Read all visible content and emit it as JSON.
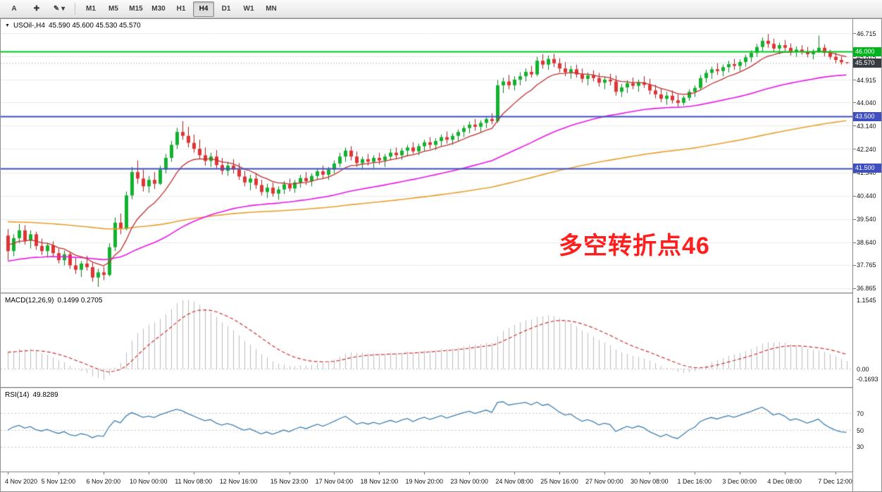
{
  "toolbar": {
    "left_buttons": [
      {
        "name": "text-tool-button",
        "label": "A"
      },
      {
        "name": "crosshair-tool-button",
        "label": "✚"
      },
      {
        "name": "drawing-tools-button",
        "label": "✎",
        "caret": "▾"
      }
    ],
    "timeframes": [
      "M1",
      "M5",
      "M15",
      "M30",
      "H1",
      "H4",
      "D1",
      "W1",
      "MN"
    ],
    "active_timeframe": "H4"
  },
  "chart": {
    "header": {
      "symbol": "USOil-,H4",
      "ohlc": "45.590 45.600 45.530 45.570"
    },
    "annotation": {
      "text": "多空转折点46",
      "color": "#ff1e1e"
    },
    "bid_price": 45.57,
    "price_axis": {
      "ticks": [
        "46.715",
        "45.815",
        "44.915",
        "44.040",
        "43.140",
        "42.240",
        "41.340",
        "40.440",
        "39.540",
        "38.640",
        "37.765",
        "36.865"
      ],
      "badges": [
        {
          "text": "46.000",
          "price": 46.0,
          "bg": "#00b41e"
        },
        {
          "text": "45.570",
          "price": 45.57,
          "bg": "#383d44"
        },
        {
          "text": "43.500",
          "price": 43.5,
          "bg": "#3f4ec0"
        },
        {
          "text": "41.500",
          "price": 41.5,
          "bg": "#3f4ec0"
        }
      ]
    },
    "hlines": [
      {
        "price": 46.0,
        "color": "#00c81e",
        "width": 2
      },
      {
        "price": 43.5,
        "color": "#3f4ec0",
        "width": 2
      },
      {
        "price": 41.5,
        "color": "#3f4ec0",
        "width": 2
      }
    ],
    "macd": {
      "label": "MACD(12,26,9)",
      "values": "0.1499 0.2705",
      "axis": [
        {
          "text": "1.1545",
          "v": 1.1545
        },
        {
          "text": "0.00",
          "v": 0
        },
        {
          "text": "-0.1693",
          "v": -0.1693
        }
      ]
    },
    "rsi": {
      "label": "RSI(14)",
      "values": "49.8289",
      "levels": [
        70,
        50,
        30
      ],
      "axis": [
        {
          "text": "70",
          "v": 70
        },
        {
          "text": "50",
          "v": 50
        },
        {
          "text": "30",
          "v": 30
        }
      ]
    },
    "time_axis": [
      {
        "text": "4 Nov 2020",
        "i": 0
      },
      {
        "text": "5 Nov 12:00",
        "i": 9
      },
      {
        "text": "6 Nov 20:00",
        "i": 17
      },
      {
        "text": "10 Nov 00:00",
        "i": 25
      },
      {
        "text": "11 Nov 08:00",
        "i": 33
      },
      {
        "text": "12 Nov 16:00",
        "i": 41
      },
      {
        "text": "15 Nov 23:00",
        "i": 50
      },
      {
        "text": "17 Nov 04:00",
        "i": 58
      },
      {
        "text": "18 Nov 12:00",
        "i": 66
      },
      {
        "text": "19 Nov 20:00",
        "i": 74
      },
      {
        "text": "23 Nov 00:00",
        "i": 82
      },
      {
        "text": "24 Nov 08:00",
        "i": 90
      },
      {
        "text": "25 Nov 16:00",
        "i": 98
      },
      {
        "text": "27 Nov 00:00",
        "i": 106
      },
      {
        "text": "30 Nov 08:00",
        "i": 114
      },
      {
        "text": "1 Dec 16:00",
        "i": 122
      },
      {
        "text": "3 Dec 00:00",
        "i": 130
      },
      {
        "text": "4 Dec 08:00",
        "i": 138
      },
      {
        "text": "7 Dec 12:00",
        "i": 147
      }
    ],
    "colors": {
      "candle_up": "#12b22e",
      "candle_up_dark": "#0b7e20",
      "candle_down": "#e03535",
      "candle_down_dark": "#a81d1d",
      "grid": "#ebebeb",
      "bid_line": "#c4c8d0",
      "macd_hist": "#bdbdbd",
      "macd_signal": "#cc3333",
      "rsi_line": "#4080b0"
    }
  },
  "chart_data": {
    "type": "candlestick",
    "symbol": "USOil-",
    "timeframe": "H4",
    "title": "USOil-,H4",
    "price_range": [
      36.7,
      47.26
    ],
    "overlays": [
      {
        "name": "ma-fast",
        "type": "ema",
        "color": "#c03030",
        "alpha": 0.18,
        "seed": 38.6
      },
      {
        "name": "ma-mid",
        "type": "ema",
        "color": "#e818e8",
        "alpha": 0.035,
        "seed": 37.9
      },
      {
        "name": "ma-slow",
        "type": "ema",
        "color": "#e8a030",
        "alpha": 0.013,
        "seed": 39.45
      }
    ],
    "indicators": {
      "macd": {
        "fast": 12,
        "slow": 26,
        "signal": 9,
        "display_macd": 0.1499,
        "display_signal": 0.2705,
        "scale_max": 1.1545,
        "axis_min": -0.1693
      },
      "rsi": {
        "period": 14,
        "display": 49.8289
      }
    },
    "candles": [
      [
        38.9,
        39.15,
        37.95,
        38.3
      ],
      [
        38.3,
        38.95,
        38.1,
        38.8
      ],
      [
        38.8,
        39.35,
        38.6,
        39.1
      ],
      [
        39.1,
        39.3,
        38.55,
        38.7
      ],
      [
        38.7,
        39.1,
        38.4,
        38.95
      ],
      [
        38.95,
        39.05,
        38.35,
        38.5
      ],
      [
        38.5,
        38.78,
        38.15,
        38.3
      ],
      [
        38.3,
        38.62,
        38.05,
        38.52
      ],
      [
        38.52,
        38.68,
        38.08,
        38.22
      ],
      [
        38.22,
        38.4,
        37.82,
        37.95
      ],
      [
        37.95,
        38.32,
        37.75,
        38.18
      ],
      [
        38.18,
        38.28,
        37.62,
        37.75
      ],
      [
        37.75,
        38.05,
        37.42,
        37.58
      ],
      [
        37.58,
        37.92,
        37.3,
        37.82
      ],
      [
        37.82,
        38.12,
        37.55,
        37.68
      ],
      [
        37.68,
        37.85,
        37.12,
        37.28
      ],
      [
        37.28,
        37.62,
        36.92,
        37.48
      ],
      [
        37.48,
        37.7,
        37.18,
        37.38
      ],
      [
        37.38,
        38.6,
        37.32,
        38.45
      ],
      [
        38.45,
        39.6,
        38.3,
        39.4
      ],
      [
        39.4,
        39.75,
        38.95,
        39.15
      ],
      [
        39.15,
        40.6,
        39.1,
        40.45
      ],
      [
        40.45,
        41.55,
        40.3,
        41.35
      ],
      [
        41.35,
        41.8,
        40.9,
        41.1
      ],
      [
        41.1,
        41.45,
        40.6,
        40.8
      ],
      [
        40.8,
        41.2,
        40.55,
        41.05
      ],
      [
        41.05,
        41.35,
        40.7,
        40.9
      ],
      [
        40.9,
        41.6,
        40.85,
        41.45
      ],
      [
        41.45,
        42.05,
        41.3,
        41.9
      ],
      [
        41.9,
        42.55,
        41.75,
        42.4
      ],
      [
        42.4,
        43.06,
        42.25,
        42.9
      ],
      [
        42.9,
        43.32,
        42.6,
        42.75
      ],
      [
        42.75,
        43.1,
        42.3,
        42.48
      ],
      [
        42.48,
        42.8,
        42.1,
        42.25
      ],
      [
        42.25,
        42.6,
        41.85,
        42.0
      ],
      [
        42.0,
        42.3,
        41.6,
        41.78
      ],
      [
        41.78,
        42.1,
        41.55,
        41.95
      ],
      [
        41.95,
        42.2,
        41.5,
        41.62
      ],
      [
        41.62,
        41.9,
        41.25,
        41.4
      ],
      [
        41.4,
        41.75,
        41.2,
        41.6
      ],
      [
        41.6,
        41.85,
        41.3,
        41.45
      ],
      [
        41.45,
        41.7,
        41.05,
        41.18
      ],
      [
        41.18,
        41.4,
        40.8,
        40.95
      ],
      [
        40.95,
        41.25,
        40.65,
        41.1
      ],
      [
        41.1,
        41.3,
        40.7,
        40.85
      ],
      [
        40.85,
        41.05,
        40.45,
        40.58
      ],
      [
        40.58,
        40.9,
        40.35,
        40.75
      ],
      [
        40.75,
        40.95,
        40.4,
        40.52
      ],
      [
        40.52,
        40.8,
        40.28,
        40.68
      ],
      [
        40.68,
        41.0,
        40.5,
        40.88
      ],
      [
        40.88,
        41.1,
        40.6,
        40.72
      ],
      [
        40.72,
        41.05,
        40.55,
        40.95
      ],
      [
        40.95,
        41.25,
        40.75,
        41.12
      ],
      [
        41.12,
        41.35,
        40.85,
        41.0
      ],
      [
        41.0,
        41.3,
        40.8,
        41.2
      ],
      [
        41.2,
        41.5,
        41.05,
        41.38
      ],
      [
        41.38,
        41.6,
        41.1,
        41.25
      ],
      [
        41.25,
        41.55,
        41.05,
        41.45
      ],
      [
        41.45,
        41.8,
        41.3,
        41.68
      ],
      [
        41.68,
        42.1,
        41.55,
        41.95
      ],
      [
        41.95,
        42.3,
        41.75,
        42.18
      ],
      [
        42.18,
        42.35,
        41.8,
        41.95
      ],
      [
        41.95,
        42.15,
        41.55,
        41.7
      ],
      [
        41.7,
        41.95,
        41.45,
        41.85
      ],
      [
        41.85,
        42.05,
        41.6,
        41.75
      ],
      [
        41.75,
        42.0,
        41.5,
        41.9
      ],
      [
        41.9,
        42.1,
        41.65,
        41.8
      ],
      [
        41.8,
        42.05,
        41.55,
        41.95
      ],
      [
        41.95,
        42.25,
        41.8,
        42.1
      ],
      [
        42.1,
        42.3,
        41.85,
        42.0
      ],
      [
        42.0,
        42.28,
        41.82,
        42.18
      ],
      [
        42.18,
        42.4,
        41.95,
        42.3
      ],
      [
        42.3,
        42.5,
        42.05,
        42.15
      ],
      [
        42.15,
        42.45,
        42.0,
        42.35
      ],
      [
        42.35,
        42.6,
        42.15,
        42.5
      ],
      [
        42.5,
        42.7,
        42.25,
        42.4
      ],
      [
        42.4,
        42.65,
        42.2,
        42.55
      ],
      [
        42.55,
        42.8,
        42.35,
        42.7
      ],
      [
        42.7,
        42.92,
        42.45,
        42.6
      ],
      [
        42.6,
        42.85,
        42.4,
        42.75
      ],
      [
        42.75,
        43.0,
        42.55,
        42.9
      ],
      [
        42.9,
        43.15,
        42.7,
        43.05
      ],
      [
        43.05,
        43.3,
        42.85,
        43.18
      ],
      [
        43.18,
        43.4,
        42.95,
        43.1
      ],
      [
        43.1,
        43.35,
        42.9,
        43.25
      ],
      [
        43.25,
        43.5,
        43.05,
        43.4
      ],
      [
        43.4,
        43.62,
        43.2,
        43.32
      ],
      [
        43.32,
        44.9,
        43.25,
        44.7
      ],
      [
        44.7,
        45.0,
        44.4,
        44.85
      ],
      [
        44.85,
        45.1,
        44.55,
        44.7
      ],
      [
        44.7,
        45.05,
        44.5,
        44.92
      ],
      [
        44.92,
        45.2,
        44.7,
        45.05
      ],
      [
        45.05,
        45.35,
        44.85,
        45.22
      ],
      [
        45.22,
        45.45,
        45.0,
        45.12
      ],
      [
        45.12,
        45.8,
        45.05,
        45.65
      ],
      [
        45.65,
        45.9,
        45.35,
        45.5
      ],
      [
        45.5,
        45.85,
        45.3,
        45.72
      ],
      [
        45.72,
        45.92,
        45.4,
        45.55
      ],
      [
        45.55,
        45.75,
        45.2,
        45.35
      ],
      [
        45.35,
        45.6,
        45.05,
        45.2
      ],
      [
        45.2,
        45.45,
        44.95,
        45.32
      ],
      [
        45.32,
        45.5,
        45.0,
        45.12
      ],
      [
        45.12,
        45.35,
        44.8,
        44.95
      ],
      [
        44.95,
        45.2,
        44.7,
        45.08
      ],
      [
        45.08,
        45.28,
        44.85,
        44.98
      ],
      [
        44.98,
        45.18,
        44.65,
        44.8
      ],
      [
        44.8,
        45.05,
        44.55,
        44.92
      ],
      [
        44.92,
        45.15,
        44.7,
        44.85
      ],
      [
        44.85,
        45.08,
        44.3,
        44.45
      ],
      [
        44.45,
        44.75,
        44.25,
        44.62
      ],
      [
        44.62,
        44.9,
        44.4,
        44.78
      ],
      [
        44.78,
        45.0,
        44.55,
        44.68
      ],
      [
        44.68,
        44.92,
        44.45,
        44.82
      ],
      [
        44.82,
        45.05,
        44.6,
        44.72
      ],
      [
        44.72,
        44.95,
        44.35,
        44.5
      ],
      [
        44.5,
        44.72,
        44.2,
        44.35
      ],
      [
        44.35,
        44.6,
        44.05,
        44.18
      ],
      [
        44.18,
        44.45,
        43.95,
        44.3
      ],
      [
        44.3,
        44.5,
        44.0,
        44.12
      ],
      [
        44.12,
        44.35,
        43.88,
        44.02
      ],
      [
        44.02,
        44.3,
        43.92,
        44.22
      ],
      [
        44.22,
        44.55,
        44.1,
        44.45
      ],
      [
        44.45,
        44.7,
        44.25,
        44.6
      ],
      [
        44.6,
        45.1,
        44.5,
        44.98
      ],
      [
        44.98,
        45.3,
        44.8,
        45.18
      ],
      [
        45.18,
        45.42,
        44.95,
        45.32
      ],
      [
        45.32,
        45.55,
        45.1,
        45.25
      ],
      [
        45.25,
        45.5,
        45.05,
        45.4
      ],
      [
        45.4,
        45.65,
        45.2,
        45.52
      ],
      [
        45.52,
        45.72,
        45.3,
        45.45
      ],
      [
        45.45,
        45.7,
        45.25,
        45.6
      ],
      [
        45.6,
        45.88,
        45.42,
        45.78
      ],
      [
        45.78,
        46.05,
        45.6,
        45.95
      ],
      [
        45.95,
        46.3,
        45.8,
        46.18
      ],
      [
        46.18,
        46.55,
        46.0,
        46.42
      ],
      [
        46.42,
        46.68,
        46.15,
        46.3
      ],
      [
        46.3,
        46.5,
        46.0,
        46.12
      ],
      [
        46.12,
        46.35,
        45.9,
        46.25
      ],
      [
        46.25,
        46.45,
        46.02,
        46.15
      ],
      [
        46.15,
        46.32,
        45.85,
        45.98
      ],
      [
        45.98,
        46.2,
        45.8,
        46.08
      ],
      [
        46.08,
        46.25,
        45.88,
        46.0
      ],
      [
        46.0,
        46.18,
        45.78,
        45.9
      ],
      [
        45.9,
        46.1,
        45.7,
        46.02
      ],
      [
        46.02,
        46.62,
        45.95,
        46.15
      ],
      [
        46.15,
        46.28,
        45.82,
        45.95
      ],
      [
        45.95,
        46.08,
        45.7,
        45.8
      ],
      [
        45.8,
        45.95,
        45.55,
        45.68
      ],
      [
        45.68,
        45.82,
        45.5,
        45.59
      ],
      [
        45.59,
        45.6,
        45.53,
        45.57
      ]
    ]
  }
}
